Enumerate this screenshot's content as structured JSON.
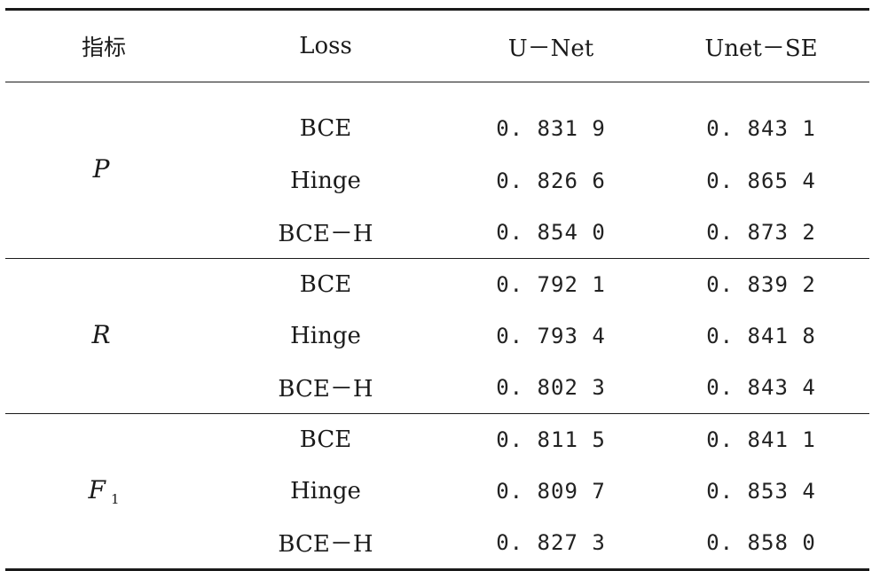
{
  "table": {
    "headers": {
      "metric": "指标",
      "loss": "Loss",
      "unet": "U－Net",
      "unet_se": "Unet－SE"
    },
    "groups": [
      {
        "metric": "P",
        "metric_sub": "",
        "rows": [
          {
            "loss": "BCE",
            "unet": "0. 831 9",
            "unet_se": "0. 843 1"
          },
          {
            "loss": "Hinge",
            "unet": "0. 826 6",
            "unet_se": "0. 865 4"
          },
          {
            "loss": "BCE－H",
            "unet": "0. 854 0",
            "unet_se": "0. 873 2"
          }
        ]
      },
      {
        "metric": "R",
        "metric_sub": "",
        "rows": [
          {
            "loss": "BCE",
            "unet": "0. 792 1",
            "unet_se": "0. 839 2"
          },
          {
            "loss": "Hinge",
            "unet": "0. 793 4",
            "unet_se": "0. 841 8"
          },
          {
            "loss": "BCE－H",
            "unet": "0. 802 3",
            "unet_se": "0. 843 4"
          }
        ]
      },
      {
        "metric": "F",
        "metric_sub": "1",
        "rows": [
          {
            "loss": "BCE",
            "unet": "0. 811 5",
            "unet_se": "0. 841 1"
          },
          {
            "loss": "Hinge",
            "unet": "0. 809 7",
            "unet_se": "0. 853 4"
          },
          {
            "loss": "BCE－H",
            "unet": "0. 827 3",
            "unet_se": "0. 858 0"
          }
        ]
      }
    ]
  }
}
